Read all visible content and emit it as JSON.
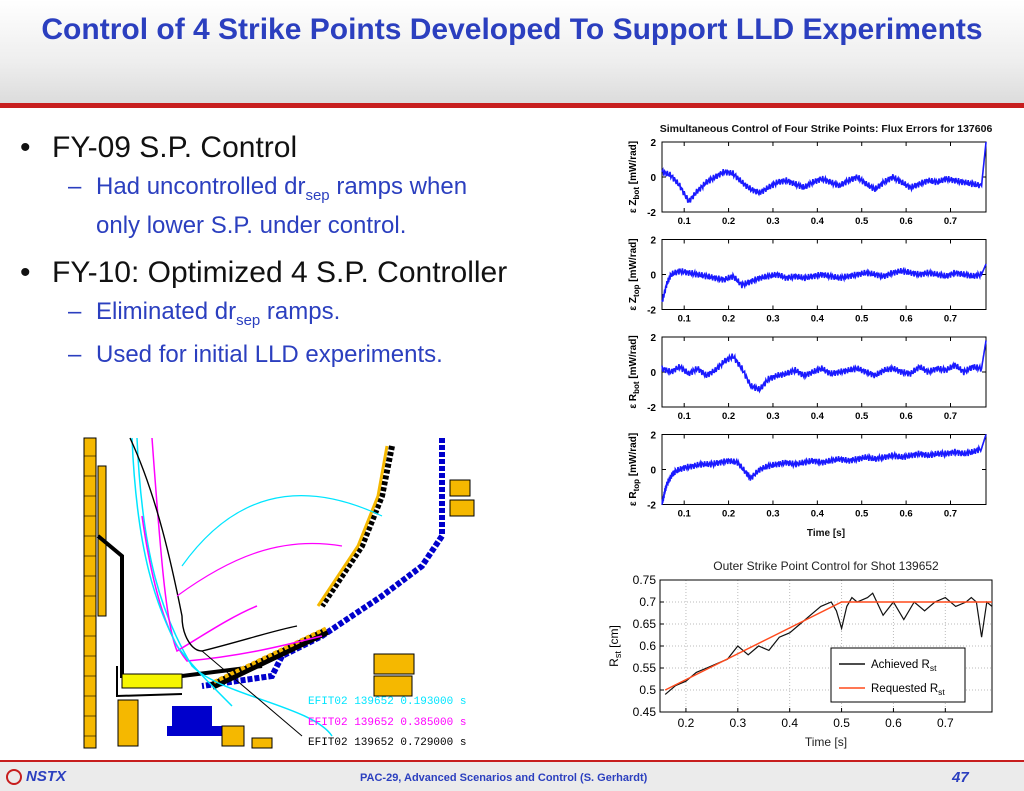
{
  "slide": {
    "title": "Control of 4 Strike Points Developed To Support LLD Experiments",
    "bullets": [
      {
        "text": "FY-09 S.P. Control",
        "subs": [
          {
            "pre": "Had uncontrolled dr",
            "sub": "sep",
            "post": " ramps when",
            "line2": "only lower S.P. under control."
          }
        ]
      },
      {
        "text": "FY-10: Optimized 4 S.P. Controller",
        "subs": [
          {
            "pre": "Eliminated dr",
            "sub": "sep",
            "post": " ramps."
          },
          {
            "text": "Used for initial LLD experiments."
          }
        ]
      }
    ],
    "bullet_glyph": "•",
    "dash_glyph": "–"
  },
  "equilibrium_legend": [
    {
      "text": "EFIT02  139652  0.193000  s",
      "color": "#00e5ff"
    },
    {
      "text": "EFIT02  139652  0.385000  s",
      "color": "#ff00ff"
    },
    {
      "text": "EFIT02  139652  0.729000  s",
      "color": "#000000"
    }
  ],
  "chart_data": [
    {
      "type": "line",
      "title": "Simultaneous Control of Four Strike Points: Flux Errors for 137606",
      "xlabel": "Time [s]",
      "xlim": [
        0.05,
        0.78
      ],
      "xticks": [
        "0.1",
        "0.2",
        "0.3",
        "0.4",
        "0.5",
        "0.6",
        "0.7"
      ],
      "color": "#1a1aff",
      "panels": [
        {
          "ylabel": "ε Z_bot [mW/rad]",
          "ylabel_main": "Z",
          "ylabel_sub": "bot",
          "ylim": [
            -2,
            2
          ],
          "yticks": [
            "2",
            "0",
            "-2"
          ],
          "x": [
            0.05,
            0.07,
            0.09,
            0.11,
            0.13,
            0.15,
            0.17,
            0.19,
            0.21,
            0.23,
            0.25,
            0.27,
            0.29,
            0.31,
            0.33,
            0.35,
            0.37,
            0.39,
            0.41,
            0.43,
            0.45,
            0.47,
            0.49,
            0.51,
            0.53,
            0.55,
            0.57,
            0.59,
            0.61,
            0.63,
            0.65,
            0.67,
            0.69,
            0.71,
            0.73,
            0.75,
            0.77,
            0.78
          ],
          "y": [
            0.3,
            0.1,
            -0.5,
            -1.4,
            -0.8,
            -0.3,
            0.0,
            0.3,
            0.2,
            -0.3,
            -0.7,
            -0.9,
            -0.6,
            -0.3,
            -0.2,
            -0.4,
            -0.6,
            -0.3,
            -0.1,
            -0.3,
            -0.5,
            -0.2,
            0.0,
            -0.4,
            -0.7,
            -0.3,
            0.0,
            -0.3,
            -0.6,
            -0.4,
            -0.2,
            -0.3,
            -0.1,
            -0.2,
            -0.3,
            -0.4,
            -0.5,
            2.0
          ]
        },
        {
          "ylabel": "ε Z_top [mW/rad]",
          "ylabel_main": "Z",
          "ylabel_sub": "top",
          "ylim": [
            -2,
            2
          ],
          "yticks": [
            "2",
            "0",
            "-2"
          ],
          "x": [
            0.05,
            0.06,
            0.07,
            0.09,
            0.11,
            0.13,
            0.15,
            0.17,
            0.19,
            0.21,
            0.23,
            0.25,
            0.27,
            0.29,
            0.31,
            0.33,
            0.35,
            0.37,
            0.39,
            0.41,
            0.43,
            0.45,
            0.47,
            0.49,
            0.51,
            0.53,
            0.55,
            0.57,
            0.59,
            0.61,
            0.63,
            0.65,
            0.67,
            0.69,
            0.71,
            0.73,
            0.75,
            0.77,
            0.78
          ],
          "y": [
            -1.6,
            -0.6,
            0.0,
            0.2,
            0.1,
            0.0,
            -0.1,
            -0.2,
            -0.3,
            -0.1,
            -0.6,
            -0.4,
            -0.2,
            -0.1,
            0.0,
            -0.2,
            -0.1,
            -0.2,
            -0.1,
            0.0,
            -0.1,
            -0.2,
            -0.1,
            0.0,
            0.1,
            0.0,
            -0.1,
            0.1,
            0.2,
            0.1,
            0.0,
            0.1,
            0.0,
            -0.1,
            0.1,
            0.0,
            -0.1,
            0.0,
            0.6
          ]
        },
        {
          "ylabel": "ε R_bot [mW/rad]",
          "ylabel_main": "R",
          "ylabel_sub": "bot",
          "ylim": [
            -2,
            2
          ],
          "yticks": [
            "2",
            "0",
            "-2"
          ],
          "x": [
            0.05,
            0.07,
            0.09,
            0.11,
            0.13,
            0.15,
            0.17,
            0.19,
            0.21,
            0.23,
            0.25,
            0.27,
            0.29,
            0.31,
            0.33,
            0.35,
            0.37,
            0.39,
            0.41,
            0.43,
            0.45,
            0.47,
            0.49,
            0.51,
            0.53,
            0.55,
            0.57,
            0.59,
            0.61,
            0.63,
            0.65,
            0.67,
            0.69,
            0.71,
            0.73,
            0.75,
            0.77,
            0.78
          ],
          "y": [
            0.2,
            0.0,
            0.3,
            -0.1,
            0.2,
            -0.2,
            0.1,
            0.6,
            0.9,
            0.2,
            -0.8,
            -1.0,
            -0.4,
            -0.2,
            -0.1,
            0.1,
            -0.2,
            0.0,
            0.2,
            -0.1,
            0.0,
            0.1,
            0.2,
            0.0,
            -0.2,
            0.1,
            0.2,
            0.0,
            -0.1,
            0.3,
            0.0,
            0.2,
            0.1,
            0.4,
            0.0,
            0.3,
            0.2,
            1.8
          ]
        },
        {
          "ylabel": "ε R_top [mW/rad]",
          "ylabel_main": "R",
          "ylabel_sub": "top",
          "ylim": [
            -2,
            2
          ],
          "yticks": [
            "2",
            "0",
            "-2"
          ],
          "x": [
            0.05,
            0.055,
            0.06,
            0.07,
            0.08,
            0.1,
            0.12,
            0.14,
            0.16,
            0.18,
            0.2,
            0.22,
            0.24,
            0.25,
            0.27,
            0.29,
            0.31,
            0.33,
            0.35,
            0.37,
            0.39,
            0.41,
            0.43,
            0.45,
            0.47,
            0.49,
            0.51,
            0.53,
            0.55,
            0.57,
            0.59,
            0.61,
            0.63,
            0.65,
            0.67,
            0.69,
            0.71,
            0.73,
            0.75,
            0.77,
            0.78
          ],
          "y": [
            -2.0,
            -1.4,
            -0.9,
            -0.4,
            -0.1,
            0.1,
            0.2,
            0.3,
            0.3,
            0.4,
            0.5,
            0.4,
            -0.2,
            -0.5,
            0.0,
            0.2,
            0.3,
            0.4,
            0.3,
            0.4,
            0.5,
            0.4,
            0.5,
            0.6,
            0.5,
            0.6,
            0.7,
            0.6,
            0.7,
            0.8,
            0.7,
            0.8,
            0.9,
            0.8,
            0.9,
            0.9,
            1.0,
            0.9,
            1.0,
            1.2,
            2.0
          ]
        }
      ]
    },
    {
      "type": "line",
      "title": "Outer Strike Point Control for Shot 139652",
      "xlabel": "Time [s]",
      "ylabel": "R_st [cm]",
      "ylabel_main": "R",
      "ylabel_sub": "st",
      "ylabel_unit": "[cm]",
      "xlim": [
        0.15,
        0.79
      ],
      "ylim": [
        0.45,
        0.75
      ],
      "xticks": [
        "0.2",
        "0.3",
        "0.4",
        "0.5",
        "0.6",
        "0.7"
      ],
      "yticks": [
        "0.45",
        "0.5",
        "0.55",
        "0.6",
        "0.65",
        "0.7",
        "0.75"
      ],
      "grid": true,
      "legend_position": "lower-right",
      "series": [
        {
          "name": "Achieved R_st",
          "label_main": "Achieved R",
          "label_sub": "st",
          "color": "#111111",
          "x": [
            0.16,
            0.18,
            0.2,
            0.22,
            0.24,
            0.26,
            0.28,
            0.3,
            0.32,
            0.34,
            0.36,
            0.38,
            0.4,
            0.42,
            0.44,
            0.46,
            0.48,
            0.49,
            0.5,
            0.51,
            0.52,
            0.53,
            0.55,
            0.56,
            0.58,
            0.6,
            0.62,
            0.64,
            0.66,
            0.68,
            0.7,
            0.72,
            0.74,
            0.75,
            0.76,
            0.77,
            0.78,
            0.79
          ],
          "y": [
            0.49,
            0.51,
            0.52,
            0.54,
            0.55,
            0.56,
            0.57,
            0.6,
            0.58,
            0.6,
            0.59,
            0.62,
            0.63,
            0.65,
            0.67,
            0.69,
            0.7,
            0.68,
            0.64,
            0.69,
            0.71,
            0.7,
            0.71,
            0.72,
            0.67,
            0.7,
            0.66,
            0.7,
            0.68,
            0.7,
            0.71,
            0.69,
            0.7,
            0.71,
            0.7,
            0.62,
            0.7,
            0.69
          ]
        },
        {
          "name": "Requested R_st",
          "label_main": "Requested R",
          "label_sub": "st",
          "color": "#ff4a1c",
          "x": [
            0.16,
            0.5,
            0.79
          ],
          "y": [
            0.5,
            0.7,
            0.7
          ]
        }
      ]
    }
  ]
}
